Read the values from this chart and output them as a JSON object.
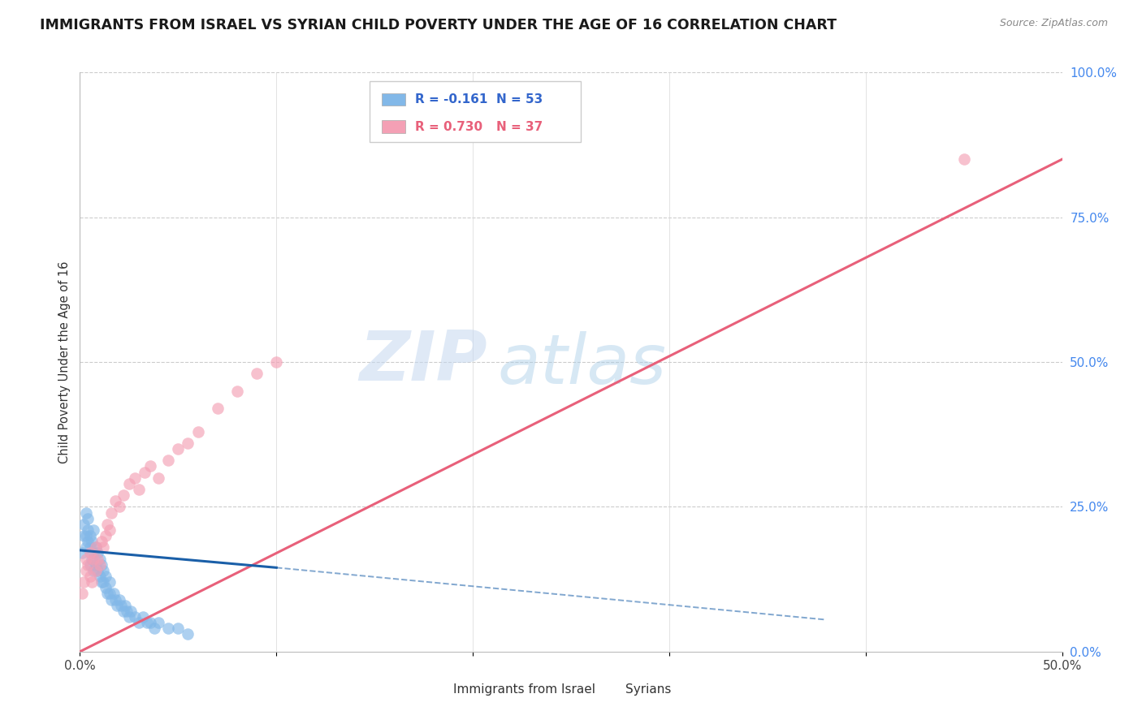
{
  "title": "IMMIGRANTS FROM ISRAEL VS SYRIAN CHILD POVERTY UNDER THE AGE OF 16 CORRELATION CHART",
  "source_text": "Source: ZipAtlas.com",
  "ylabel": "Child Poverty Under the Age of 16",
  "xlim": [
    0.0,
    0.5
  ],
  "ylim": [
    0.0,
    1.0
  ],
  "xticks": [
    0.0,
    0.1,
    0.2,
    0.3,
    0.4,
    0.5
  ],
  "xtick_labels": [
    "0.0%",
    "",
    "",
    "",
    "",
    "50.0%"
  ],
  "ytick_labels_right": [
    "100.0%",
    "75.0%",
    "50.0%",
    "25.0%",
    "0.0%"
  ],
  "yticks_right": [
    1.0,
    0.75,
    0.5,
    0.25,
    0.0
  ],
  "legend_r1": "R = -0.161",
  "legend_n1": "N = 53",
  "legend_r2": "R = 0.730",
  "legend_n2": "N = 37",
  "color_blue": "#82b8e8",
  "color_pink": "#f4a0b5",
  "color_blue_line": "#1a5fa8",
  "color_pink_line": "#e8607a",
  "watermark_zip": "ZIP",
  "watermark_atlas": "atlas",
  "title_fontsize": 12.5,
  "israel_x": [
    0.001,
    0.002,
    0.002,
    0.003,
    0.003,
    0.003,
    0.004,
    0.004,
    0.004,
    0.005,
    0.005,
    0.005,
    0.006,
    0.006,
    0.007,
    0.007,
    0.007,
    0.008,
    0.008,
    0.009,
    0.009,
    0.01,
    0.01,
    0.011,
    0.011,
    0.012,
    0.012,
    0.013,
    0.013,
    0.014,
    0.015,
    0.015,
    0.016,
    0.017,
    0.018,
    0.019,
    0.02,
    0.021,
    0.022,
    0.023,
    0.024,
    0.025,
    0.026,
    0.028,
    0.03,
    0.032,
    0.034,
    0.036,
    0.038,
    0.04,
    0.045,
    0.05,
    0.055
  ],
  "israel_y": [
    0.17,
    0.2,
    0.22,
    0.18,
    0.2,
    0.24,
    0.19,
    0.21,
    0.23,
    0.15,
    0.18,
    0.2,
    0.16,
    0.19,
    0.14,
    0.17,
    0.21,
    0.15,
    0.18,
    0.14,
    0.17,
    0.13,
    0.16,
    0.12,
    0.15,
    0.12,
    0.14,
    0.11,
    0.13,
    0.1,
    0.1,
    0.12,
    0.09,
    0.1,
    0.09,
    0.08,
    0.09,
    0.08,
    0.07,
    0.08,
    0.07,
    0.06,
    0.07,
    0.06,
    0.05,
    0.06,
    0.05,
    0.05,
    0.04,
    0.05,
    0.04,
    0.04,
    0.03
  ],
  "syrian_x": [
    0.001,
    0.002,
    0.003,
    0.003,
    0.004,
    0.005,
    0.005,
    0.006,
    0.007,
    0.008,
    0.008,
    0.009,
    0.01,
    0.011,
    0.012,
    0.013,
    0.014,
    0.015,
    0.016,
    0.018,
    0.02,
    0.022,
    0.025,
    0.028,
    0.03,
    0.033,
    0.036,
    0.04,
    0.045,
    0.05,
    0.055,
    0.06,
    0.07,
    0.08,
    0.09,
    0.1,
    0.45
  ],
  "syrian_y": [
    0.1,
    0.12,
    0.14,
    0.16,
    0.15,
    0.13,
    0.17,
    0.12,
    0.16,
    0.14,
    0.18,
    0.16,
    0.15,
    0.19,
    0.18,
    0.2,
    0.22,
    0.21,
    0.24,
    0.26,
    0.25,
    0.27,
    0.29,
    0.3,
    0.28,
    0.31,
    0.32,
    0.3,
    0.33,
    0.35,
    0.36,
    0.38,
    0.42,
    0.45,
    0.48,
    0.5,
    0.85
  ],
  "pink_line_x0": 0.0,
  "pink_line_y0": 0.0,
  "pink_line_x1": 0.5,
  "pink_line_y1": 0.85,
  "blue_line_x0": 0.0,
  "blue_line_y0": 0.175,
  "blue_line_solid_x1": 0.1,
  "blue_line_solid_y1": 0.145,
  "blue_line_dash_x1": 0.38,
  "blue_line_dash_y1": 0.055
}
